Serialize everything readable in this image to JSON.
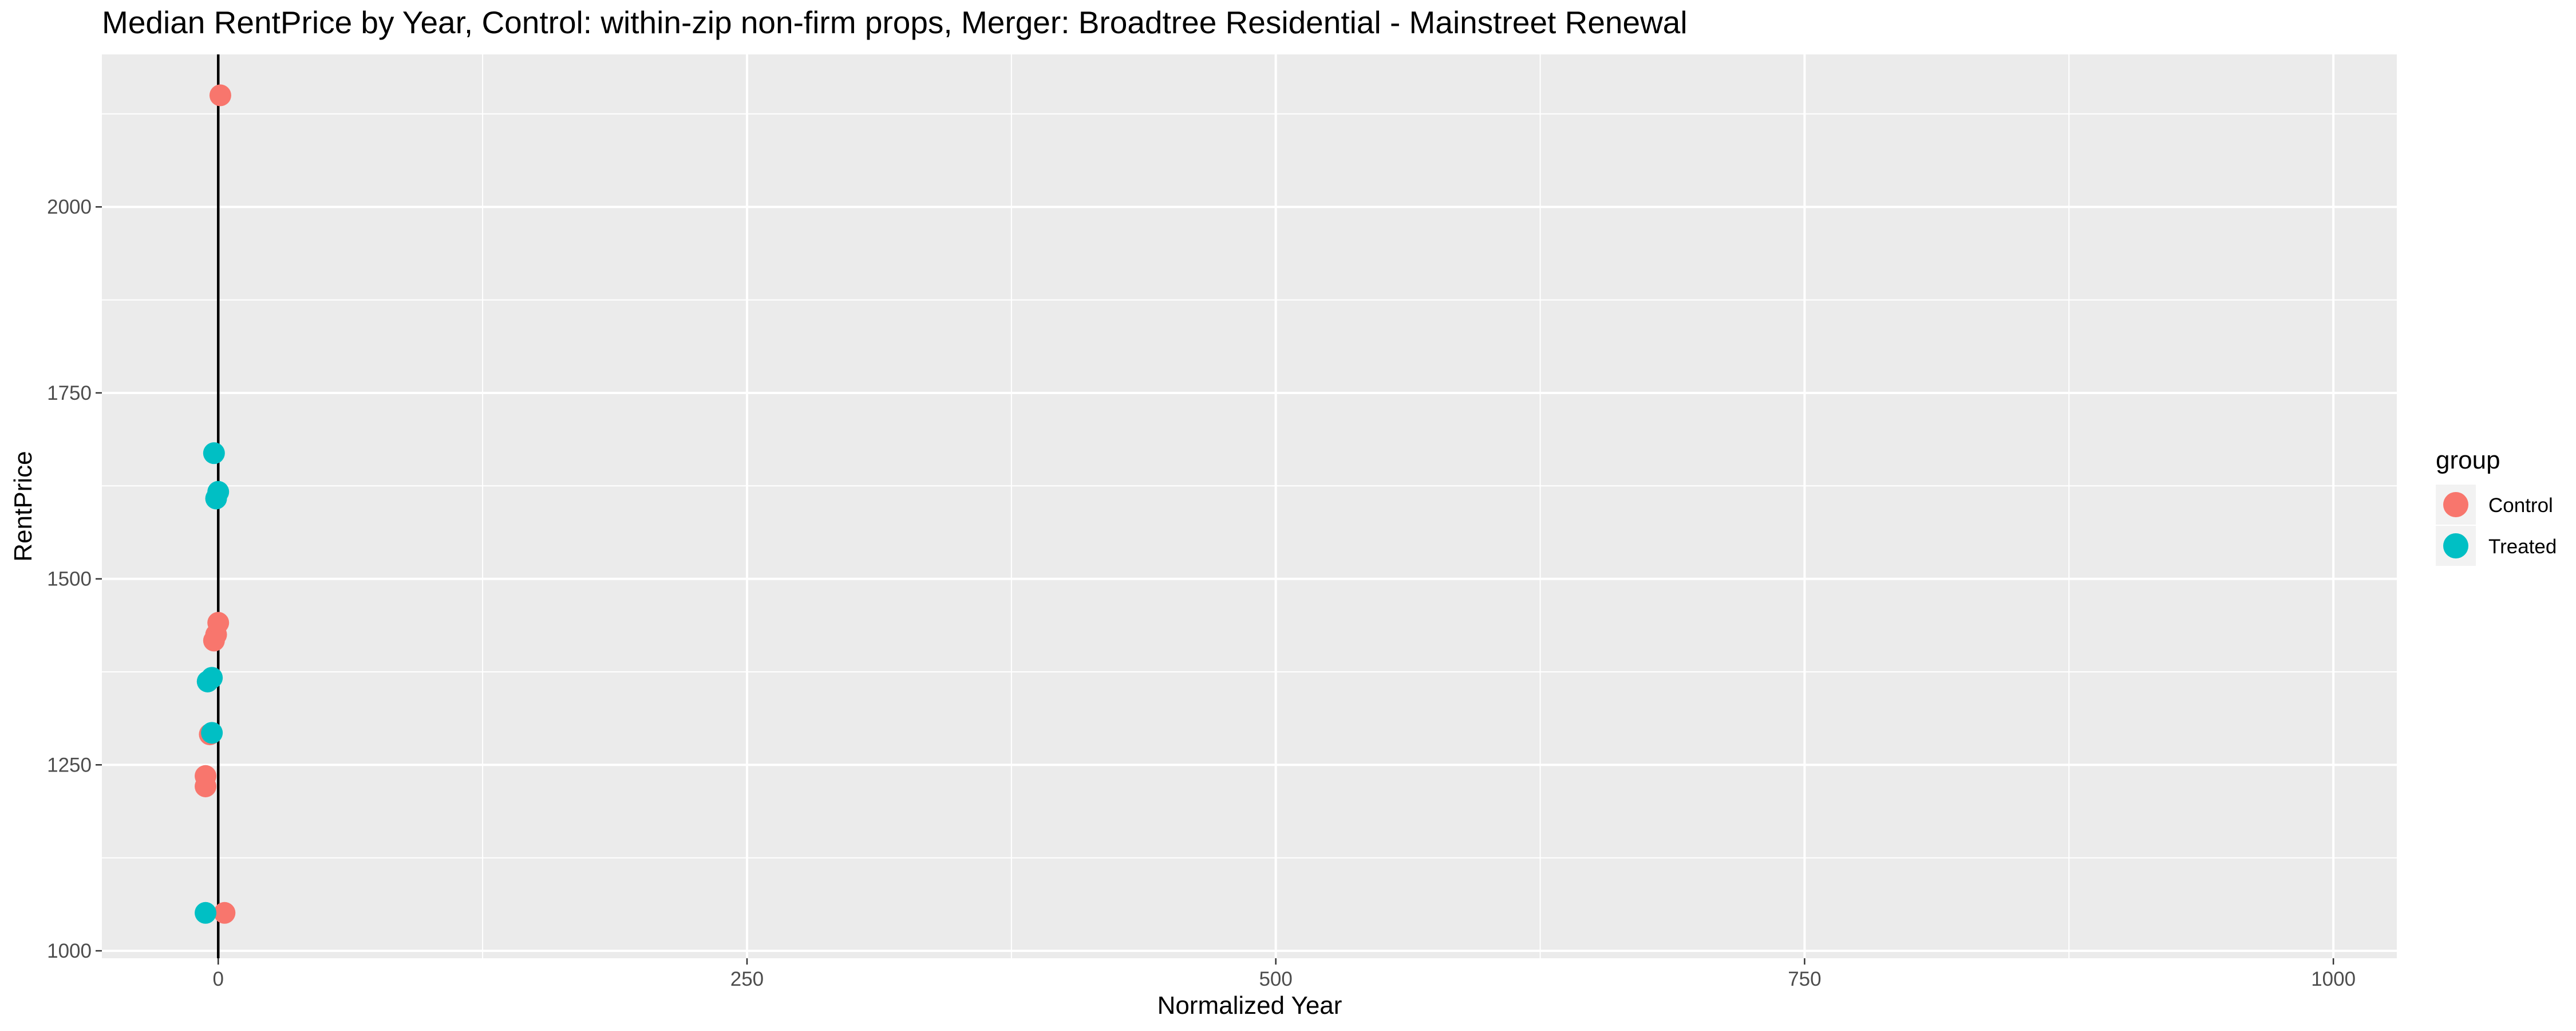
{
  "chart_data": {
    "type": "scatter",
    "title": "Median RentPrice by Year, Control: within-zip non-firm props, Merger: Broadtree Residential - Mainstreet Renewal",
    "xlabel": "Normalized Year",
    "ylabel": "RentPrice",
    "xlim": [
      -55,
      1030
    ],
    "ylim": [
      990,
      2205
    ],
    "x_ticks": [
      0,
      250,
      500,
      750,
      1000
    ],
    "x_tick_labels": [
      "0",
      "250",
      "500",
      "750",
      "1000"
    ],
    "y_ticks": [
      1000,
      1250,
      1500,
      1750,
      2000
    ],
    "y_tick_labels": [
      "1000",
      "1250",
      "1500",
      "1750",
      "2000"
    ],
    "grid": true,
    "reference_line_x": 0,
    "legend": {
      "title": "group",
      "position": "right",
      "entries": [
        {
          "label": "Control",
          "color": "#F8766D"
        },
        {
          "label": "Treated",
          "color": "#00BFC4"
        }
      ]
    },
    "series": [
      {
        "name": "Control",
        "color": "#F8766D",
        "points": [
          {
            "x": -6,
            "y": 1221
          },
          {
            "x": -6,
            "y": 1235
          },
          {
            "x": -4,
            "y": 1291
          },
          {
            "x": -2,
            "y": 1417
          },
          {
            "x": -1,
            "y": 1425
          },
          {
            "x": 0,
            "y": 1441
          },
          {
            "x": 1,
            "y": 2150
          },
          {
            "x": 3,
            "y": 1051
          }
        ]
      },
      {
        "name": "Treated",
        "color": "#00BFC4",
        "points": [
          {
            "x": -6,
            "y": 1051
          },
          {
            "x": -5,
            "y": 1362
          },
          {
            "x": -3,
            "y": 1293
          },
          {
            "x": -3,
            "y": 1367
          },
          {
            "x": -2,
            "y": 1669
          },
          {
            "x": -1,
            "y": 1608
          },
          {
            "x": 0,
            "y": 1617
          }
        ]
      }
    ]
  }
}
